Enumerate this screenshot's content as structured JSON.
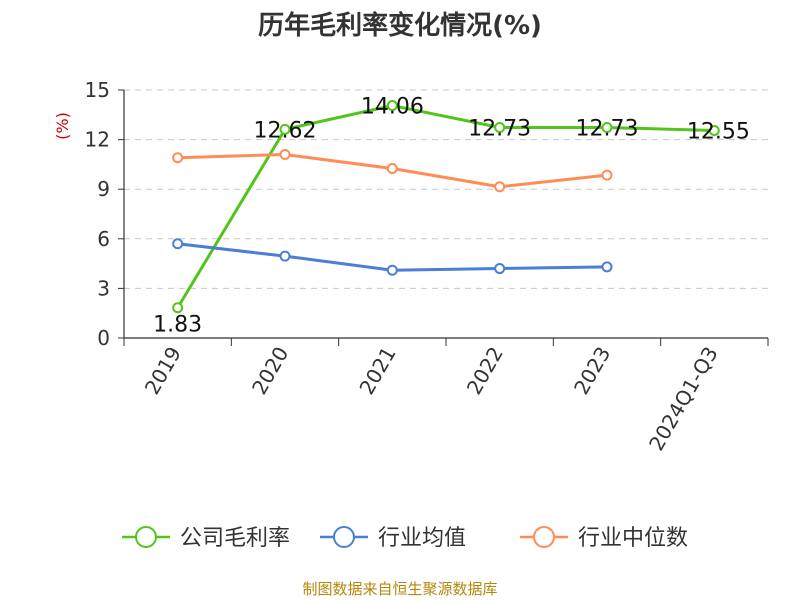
{
  "chart_data": {
    "type": "line",
    "title": "历年毛利率变化情况(%)",
    "ylabel": "(%)",
    "x": [
      "2019",
      "2020",
      "2021",
      "2022",
      "2023",
      "2024Q1-Q3"
    ],
    "ylim": [
      0,
      15
    ],
    "yticks": [
      0,
      3,
      6,
      9,
      12,
      15
    ],
    "grid": true,
    "legend_position": "bottom",
    "series": [
      {
        "name": "公司毛利率",
        "color": "#52c41a",
        "values": [
          1.83,
          12.62,
          14.06,
          12.73,
          12.73,
          12.55
        ],
        "show_labels": true
      },
      {
        "name": "行业均值",
        "color": "#4a7fd6",
        "values": [
          5.7,
          4.95,
          4.1,
          4.2,
          4.3,
          null
        ],
        "show_labels": false
      },
      {
        "name": "行业中位数",
        "color": "#ff8c55",
        "values": [
          10.9,
          11.1,
          10.25,
          9.15,
          9.85,
          null
        ],
        "show_labels": false
      }
    ]
  },
  "source_text": "制图数据来自恒生聚源数据库"
}
